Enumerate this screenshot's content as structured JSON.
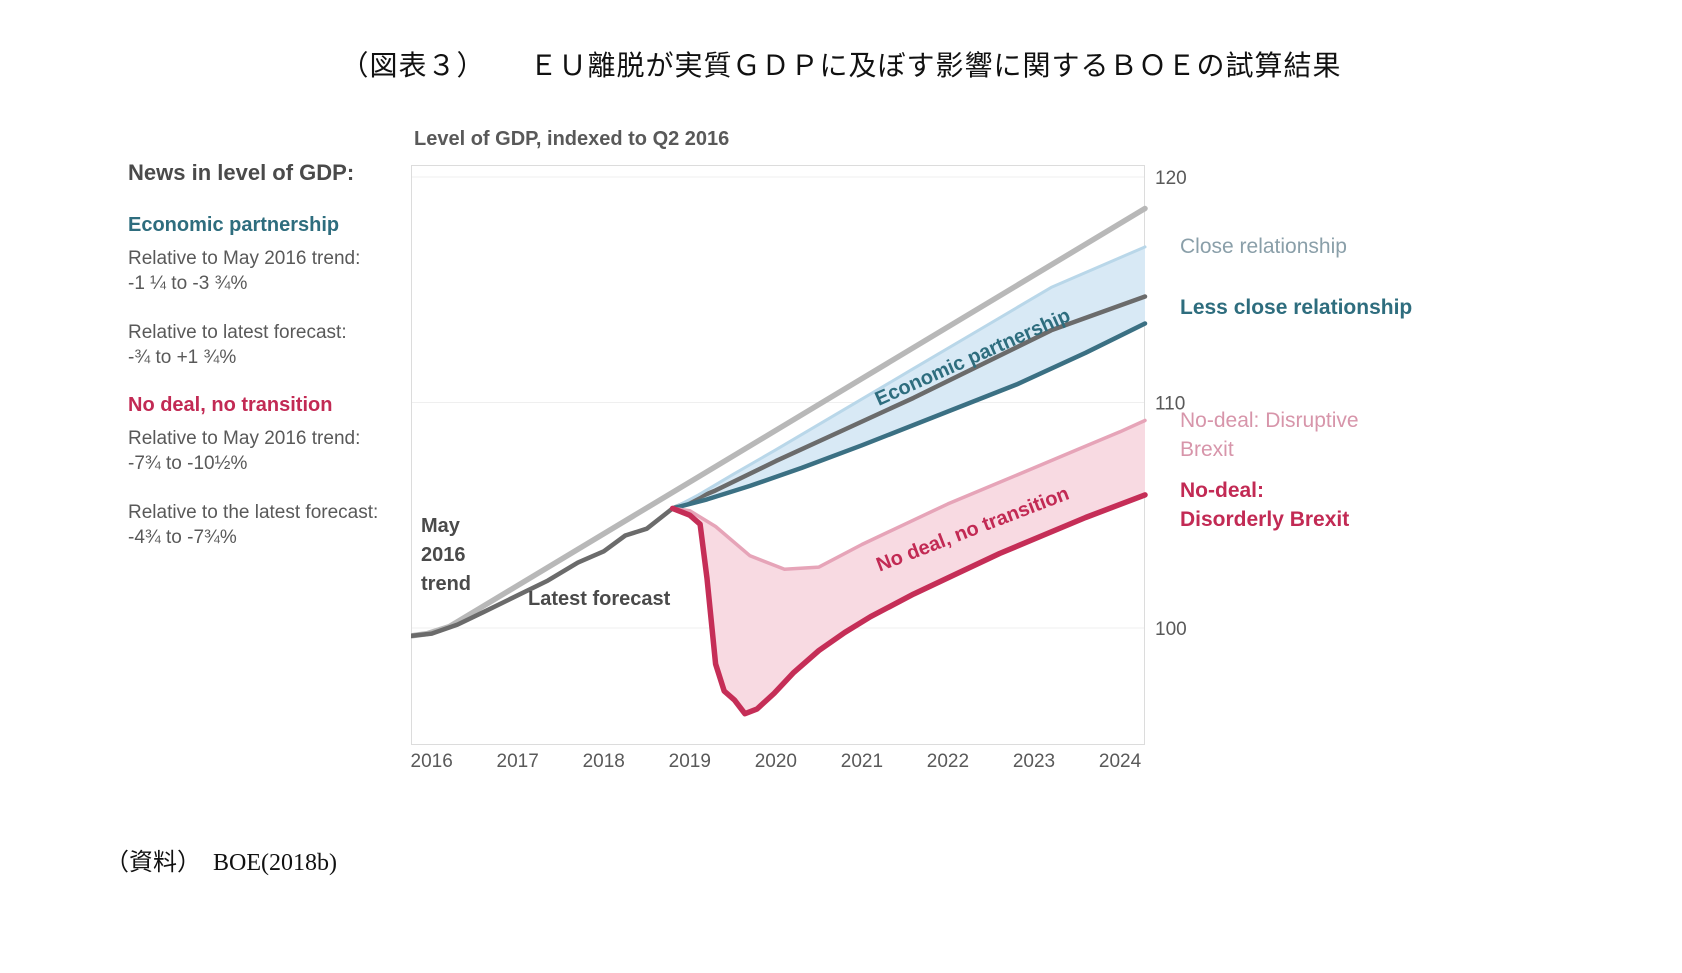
{
  "page": {
    "title": "（図表３）　　ＥＵ離脱が実質ＧＤＰに及ぼす影響に関するＢＯＥの試算結果",
    "source_note": "（資料）　BOE(2018b)"
  },
  "left_panel": {
    "heading": "News in level of GDP:",
    "sections": [
      {
        "title": "Economic partnership",
        "color": "#2e6d7e",
        "rows": [
          {
            "label": "Relative to May 2016 trend:",
            "value": "-1 ¼ to -3 ¾%"
          },
          {
            "label": "Relative to latest forecast:",
            "value": "-¾ to +1 ¾%"
          }
        ]
      },
      {
        "title": "No deal, no transition",
        "color": "#c22a54",
        "rows": [
          {
            "label": "Relative to May 2016 trend:",
            "value": "-7¾ to -10½%"
          },
          {
            "label": "Relative to the latest forecast:",
            "value": "-4¾ to -7¾%"
          }
        ]
      }
    ]
  },
  "chart": {
    "title": "Level of GDP, indexed to Q2 2016",
    "in_labels": {
      "may_trend": "May\n2016\ntrend",
      "latest_forecast": "Latest forecast",
      "economic_partnership": "Economic partnership",
      "no_deal": "No deal, no transition"
    },
    "right_legend": [
      {
        "text": "Close relationship",
        "color": "#8a9fa9"
      },
      {
        "text": "Less close relationship",
        "color": "#2e6d7e"
      },
      {
        "text": "No-deal: Disruptive\nBrexit",
        "color": "#d795aa"
      },
      {
        "text": "No-deal:\nDisorderly Brexit",
        "color": "#c22a54"
      }
    ],
    "colors": {
      "may_trend_line": "#b8b8b8",
      "latest_forecast_line": "#6b6b6b",
      "teal_accent": "#2e6d7e",
      "crimson_accent": "#c22a54",
      "pink_accent": "#d795aa",
      "blue_band": "#d8e9f5",
      "pink_band": "#f8dae2"
    }
  },
  "chart_data": {
    "type": "line",
    "title": "Level of GDP, indexed to Q2 2016",
    "xlabel": "",
    "ylabel": "Level of GDP, indexed to Q2 2016",
    "x_ticks": [
      2016,
      2017,
      2018,
      2019,
      2020,
      2021,
      2022,
      2023,
      2024
    ],
    "y_ticks": [
      100,
      110,
      120
    ],
    "xlim": [
      2015.76,
      2024.29
    ],
    "ylim": [
      94.81,
      120.53
    ],
    "grid": "faint horizontal at y ticks",
    "legend_position": "right-side text labels",
    "series": [
      {
        "name": "May 2016 trend",
        "color": "#b8b8b8",
        "width": 5.5,
        "points": [
          [
            2015.76,
            99.65
          ],
          [
            2015.95,
            99.75
          ],
          [
            2016.2,
            100.05
          ],
          [
            2024.29,
            118.6
          ]
        ]
      },
      {
        "name": "Latest forecast",
        "color": "#6b6b6b",
        "width": 4.5,
        "points": [
          [
            2015.76,
            99.65
          ],
          [
            2016.0,
            99.75
          ],
          [
            2016.3,
            100.15
          ],
          [
            2016.6,
            100.7
          ],
          [
            2017.0,
            101.45
          ],
          [
            2017.35,
            102.1
          ],
          [
            2017.7,
            102.9
          ],
          [
            2018.0,
            103.4
          ],
          [
            2018.25,
            104.1
          ],
          [
            2018.5,
            104.4
          ],
          [
            2018.8,
            105.3
          ],
          [
            2019.3,
            106.1
          ],
          [
            2020.0,
            107.4
          ],
          [
            2020.8,
            108.8
          ],
          [
            2021.6,
            110.2
          ],
          [
            2022.4,
            111.7
          ],
          [
            2023.2,
            113.2
          ],
          [
            2024.29,
            114.7
          ]
        ]
      },
      {
        "name": "Close relationship",
        "color": "#b9d7e9",
        "width": 3,
        "points": [
          [
            2018.8,
            105.3
          ],
          [
            2019.1,
            105.9
          ],
          [
            2019.5,
            106.8
          ],
          [
            2020.0,
            107.9
          ],
          [
            2020.8,
            109.7
          ],
          [
            2021.6,
            111.5
          ],
          [
            2022.4,
            113.3
          ],
          [
            2023.2,
            115.1
          ],
          [
            2024.29,
            116.9
          ]
        ]
      },
      {
        "name": "Less close relationship",
        "color": "#3b7083",
        "width": 4.5,
        "points": [
          [
            2018.8,
            105.3
          ],
          [
            2019.2,
            105.7
          ],
          [
            2019.7,
            106.3
          ],
          [
            2020.3,
            107.1
          ],
          [
            2021.0,
            108.1
          ],
          [
            2022.0,
            109.6
          ],
          [
            2022.8,
            110.8
          ],
          [
            2023.6,
            112.2
          ],
          [
            2024.29,
            113.5
          ]
        ]
      },
      {
        "name": "No-deal: Disruptive Brexit",
        "color": "#e6a4b8",
        "width": 3.5,
        "points": [
          [
            2018.8,
            105.3
          ],
          [
            2019.0,
            105.2
          ],
          [
            2019.3,
            104.5
          ],
          [
            2019.7,
            103.2
          ],
          [
            2020.1,
            102.6
          ],
          [
            2020.5,
            102.7
          ],
          [
            2021.0,
            103.7
          ],
          [
            2021.5,
            104.6
          ],
          [
            2022.0,
            105.5
          ],
          [
            2022.5,
            106.3
          ],
          [
            2023.0,
            107.1
          ],
          [
            2023.5,
            107.9
          ],
          [
            2024.0,
            108.7
          ],
          [
            2024.29,
            109.2
          ]
        ]
      },
      {
        "name": "No-deal: Disorderly Brexit",
        "color": "#c52e57",
        "width": 5.5,
        "points": [
          [
            2018.8,
            105.3
          ],
          [
            2019.0,
            105.0
          ],
          [
            2019.12,
            104.6
          ],
          [
            2019.2,
            102.2
          ],
          [
            2019.3,
            98.4
          ],
          [
            2019.4,
            97.2
          ],
          [
            2019.52,
            96.8
          ],
          [
            2019.64,
            96.2
          ],
          [
            2019.78,
            96.4
          ],
          [
            2019.98,
            97.1
          ],
          [
            2020.2,
            98.0
          ],
          [
            2020.5,
            99.0
          ],
          [
            2020.8,
            99.8
          ],
          [
            2021.1,
            100.5
          ],
          [
            2021.6,
            101.5
          ],
          [
            2022.1,
            102.4
          ],
          [
            2022.6,
            103.3
          ],
          [
            2023.1,
            104.1
          ],
          [
            2023.6,
            104.9
          ],
          [
            2024.29,
            105.9
          ]
        ]
      }
    ],
    "bands": [
      {
        "upper": "Close relationship",
        "lower": "Less close relationship",
        "fill": "#d8e9f5"
      },
      {
        "upper": "No-deal: Disruptive Brexit",
        "lower": "No-deal: Disorderly Brexit",
        "fill": "#f8dae2"
      }
    ]
  }
}
